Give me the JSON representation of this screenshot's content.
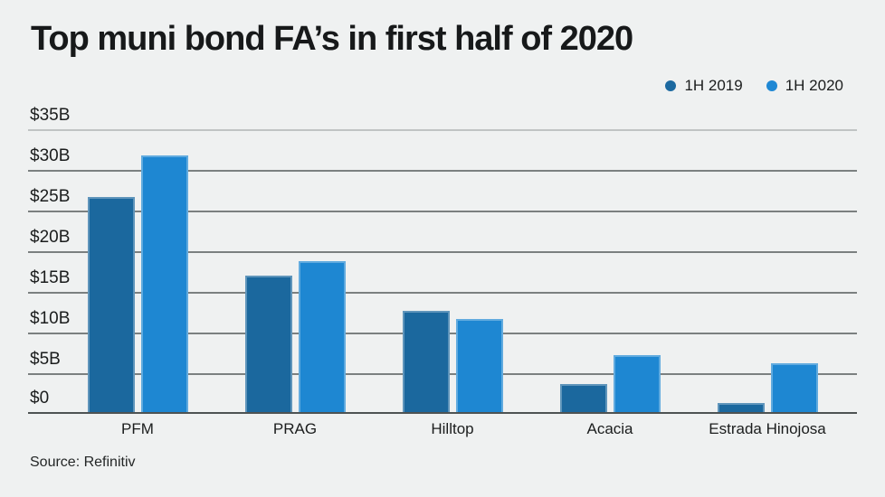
{
  "title": "Top muni bond FA’s in first half of 2020",
  "source": "Source: Refinitiv",
  "legend": {
    "items": [
      {
        "label": "1H 2019",
        "color": "#1c69a0"
      },
      {
        "label": "1H 2020",
        "color": "#1f88d4"
      }
    ]
  },
  "colors": {
    "background": "#eff1f1",
    "series_1h2019": "#1b689e",
    "series_1h2020": "#1e87d2",
    "gridline": "#7b8080",
    "gridline_top": "#c0c4c4",
    "axis_baseline": "#4e5353",
    "text": "#1b1d1d"
  },
  "chart_data": {
    "type": "bar",
    "title": "Top muni bond FA’s in first half of 2020",
    "categories": [
      "PFM",
      "PRAG",
      "Hilltop",
      "Acacia",
      "Estrada Hinojosa"
    ],
    "series": [
      {
        "name": "1H 2019",
        "color": "#1b689e",
        "values": [
          26.7,
          17.0,
          12.7,
          3.7,
          1.3
        ]
      },
      {
        "name": "1H 2020",
        "color": "#1e87d2",
        "values": [
          31.8,
          18.8,
          11.7,
          7.2,
          6.2
        ]
      }
    ],
    "unit": "$ billions",
    "xlabel": "",
    "ylabel": "",
    "ylim": [
      0,
      35
    ],
    "y_tick_values": [
      35,
      30,
      25,
      20,
      15,
      10,
      5,
      0
    ],
    "y_tick_labels": [
      "$35B",
      "$30B",
      "$25B",
      "$20B",
      "$15B",
      "$10B",
      "$5B",
      "$0"
    ],
    "grid": true,
    "legend_position": "top-right",
    "source": "Source: Refinitiv"
  }
}
